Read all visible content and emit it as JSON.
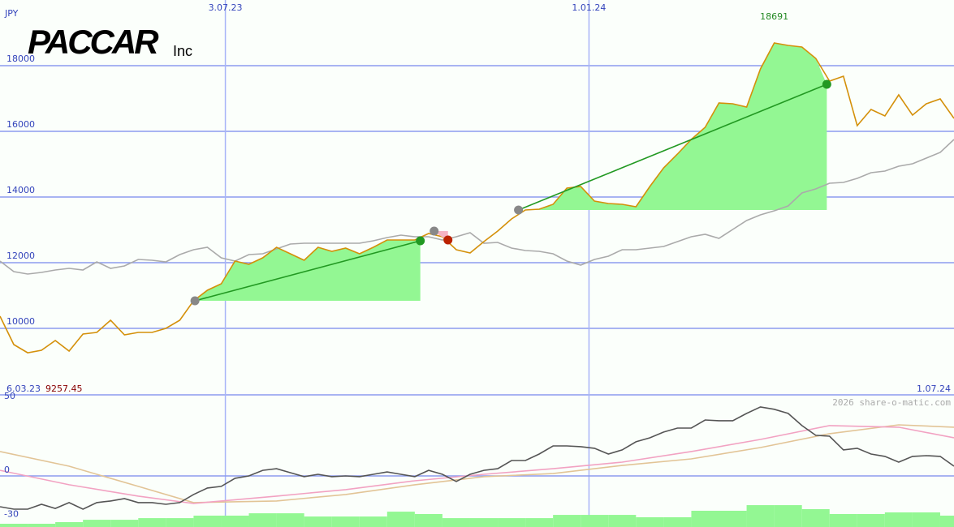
{
  "logo": {
    "name": "PACCAR",
    "suffix": "Inc"
  },
  "chart_data": [
    {
      "type": "line",
      "ylabel": "JPY",
      "x": [
        0,
        1,
        2,
        3,
        4,
        5,
        6,
        7,
        8,
        9,
        10,
        11,
        12,
        13,
        14,
        15,
        16,
        17,
        18,
        19,
        20,
        21,
        22,
        23,
        24,
        25,
        26,
        27,
        28,
        29,
        30,
        31,
        32,
        33,
        34,
        35,
        36,
        37,
        38,
        39,
        40,
        41,
        42,
        43,
        44,
        45,
        46,
        47,
        48,
        49,
        50,
        51,
        52,
        53,
        54,
        55,
        56,
        57,
        58,
        59,
        60,
        61,
        62,
        63,
        64,
        65,
        66,
        67,
        68,
        69
      ],
      "xlim": [
        0,
        69
      ],
      "xticks": [
        {
          "value": 16.3,
          "label": "3.07.23"
        },
        {
          "value": 42.6,
          "label": "1.01.24"
        }
      ],
      "start_label": "6.03.23",
      "end_label": "1.07.24",
      "min_value": 9257.45,
      "max_value": 18691,
      "ylim": [
        7975,
        20000
      ],
      "yticks": [
        10000,
        12000,
        14000,
        16000,
        18000
      ],
      "grid": true,
      "series": [
        {
          "color": "#aaaaaa",
          "values": [
            12050,
            11729,
            11655,
            11704,
            11778,
            11827,
            11778,
            12025,
            11827,
            11902,
            12099,
            12074,
            12025,
            12247,
            12395,
            12469,
            12148,
            12050,
            12247,
            12272,
            12420,
            12568,
            12593,
            12593,
            12593,
            12593,
            12593,
            12667,
            12766,
            12840,
            12790,
            12790,
            12692,
            12790,
            12914,
            12593,
            12618,
            12445,
            12371,
            12346,
            12272,
            12050,
            11926,
            12099,
            12198,
            12395,
            12395,
            12445,
            12494,
            12642,
            12790,
            12864,
            12741,
            13013,
            13284,
            13457,
            13580,
            13729,
            14124,
            14247,
            14420,
            14444,
            14568,
            14741,
            14790,
            14938,
            15013,
            15185,
            15358,
            15753
          ]
        },
        {
          "color": "#d4900a",
          "values": [
            10371,
            9506,
            9257.45,
            9333,
            9630,
            9309,
            9827,
            9877,
            10247,
            9803,
            9877,
            9877,
            10000,
            10247,
            10840,
            11161,
            11358,
            12050,
            11951,
            12148,
            12469,
            12272,
            12074,
            12469,
            12346,
            12445,
            12272,
            12469,
            12692,
            12692,
            12692,
            12889,
            12790,
            12395,
            12297,
            12642,
            12963,
            13334,
            13605,
            13630,
            13778,
            14272,
            14321,
            13877,
            13803,
            13778,
            13704,
            14321,
            14889,
            15309,
            15753,
            16124,
            16864,
            16840,
            16741,
            17901,
            18691,
            18617,
            18568,
            18222,
            17531,
            17679,
            16173,
            16667,
            16469,
            17111,
            16494,
            16840,
            16988,
            16395
          ]
        }
      ],
      "trades": [
        {
          "entry_x": 14.1,
          "entry": 10840,
          "exit_x": 30.4,
          "exit": 12667,
          "fill": "#93f793",
          "line": "#229922",
          "entry_color": "#888888",
          "exit_color": "#229922"
        },
        {
          "entry_x": 31.4,
          "entry": 12963,
          "exit_x": 32.4,
          "exit": 12692,
          "fill": "#f6b4c4",
          "line": "#f6b4c4",
          "entry_color": "#888888",
          "exit_color": "#bb2200"
        },
        {
          "entry_x": 37.5,
          "entry": 13605,
          "exit_x": 59.8,
          "exit": 17432,
          "fill": "#93f793",
          "line": "#229922",
          "entry_color": "#888888",
          "exit_color": "#229922"
        }
      ]
    },
    {
      "type": "line",
      "credit": "2026 share-o-matic.com",
      "x": [
        0,
        1,
        2,
        3,
        4,
        5,
        6,
        7,
        8,
        9,
        10,
        11,
        12,
        13,
        14,
        15,
        16,
        17,
        18,
        19,
        20,
        21,
        22,
        23,
        24,
        25,
        26,
        27,
        28,
        29,
        30,
        31,
        32,
        33,
        34,
        35,
        36,
        37,
        38,
        39,
        40,
        41,
        42,
        43,
        44,
        45,
        46,
        47,
        48,
        49,
        50,
        51,
        52,
        53,
        54,
        55,
        56,
        57,
        58,
        59,
        60,
        61,
        62,
        63,
        64,
        65,
        66,
        67,
        68,
        69
      ],
      "xlim": [
        0,
        69
      ],
      "ylim": [
        -34.6,
        54.9
      ],
      "yticks": [
        50,
        0,
        -30
      ],
      "zero_line": true,
      "series": [
        {
          "type": "bar",
          "color": "#93f793",
          "bar_width": 2,
          "x": [
            0,
            2,
            4,
            6,
            8,
            10,
            12,
            14,
            16,
            18,
            20,
            22,
            24,
            26,
            28,
            30,
            32,
            34,
            36,
            38,
            40,
            42,
            44,
            46,
            48,
            50,
            52,
            54,
            56,
            58,
            60,
            62,
            64,
            66,
            68
          ],
          "values": [
            2.2,
            2.2,
            3.3,
            4.9,
            4.9,
            6.0,
            6.0,
            7.7,
            7.7,
            9.3,
            9.3,
            7.1,
            7.1,
            7.1,
            10.4,
            8.8,
            6.0,
            6.0,
            6.0,
            6.0,
            8.2,
            8.2,
            8.2,
            6.6,
            6.6,
            11.0,
            11.0,
            14.8,
            14.8,
            12.1,
            8.8,
            8.8,
            9.9,
            9.9,
            7.7
          ]
        },
        {
          "color": "#e2c496",
          "x": [
            0,
            5,
            10,
            14,
            20,
            25,
            30,
            35,
            40,
            45,
            50,
            55,
            60,
            65,
            69
          ],
          "values": [
            16.5,
            6.6,
            -7.1,
            -18.1,
            -17.0,
            -12.6,
            -6.0,
            -0.5,
            1.6,
            7.1,
            11.5,
            19.2,
            28.6,
            34.6,
            33.0
          ]
        },
        {
          "color": "#f2a2c2",
          "x": [
            0,
            5,
            10,
            14,
            20,
            25,
            30,
            35,
            40,
            45,
            50,
            55,
            60,
            65,
            69
          ],
          "values": [
            3.8,
            -6.0,
            -13.7,
            -18.7,
            -13.7,
            -9.3,
            -3.3,
            1.1,
            4.9,
            9.3,
            16.5,
            24.7,
            34.1,
            33.0,
            25.8
          ]
        },
        {
          "color": "#555555",
          "values": [
            -20.9,
            -22.5,
            -22.5,
            -19.2,
            -22.0,
            -18.1,
            -22.5,
            -18.1,
            -17.0,
            -15.4,
            -18.1,
            -18.1,
            -19.2,
            -18.1,
            -12.6,
            -8.2,
            -7.1,
            -1.6,
            0,
            3.8,
            4.9,
            2.2,
            -0.5,
            1.1,
            -0.5,
            0,
            -0.5,
            1.1,
            2.7,
            1.1,
            -0.5,
            3.8,
            1.1,
            -3.8,
            1.1,
            3.8,
            4.9,
            10.4,
            10.4,
            14.8,
            20.3,
            20.3,
            19.8,
            18.7,
            14.8,
            17.6,
            23.1,
            25.8,
            29.7,
            32.4,
            32.4,
            37.9,
            37.4,
            37.4,
            42.3,
            46.7,
            45.1,
            42.3,
            34.1,
            27.5,
            26.9,
            17.6,
            18.7,
            14.8,
            13.2,
            9.3,
            13.2,
            13.7,
            13.2,
            6.6
          ]
        }
      ]
    }
  ]
}
